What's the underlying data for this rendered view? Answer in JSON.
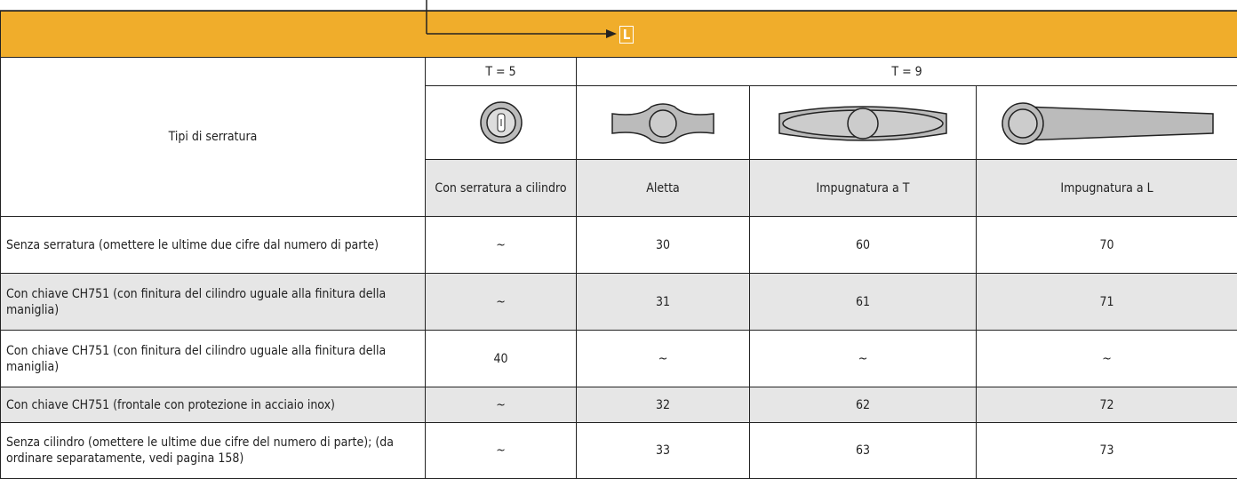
{
  "header": {
    "marker": "L"
  },
  "table": {
    "row_header": "Tipi di serratura",
    "groups": [
      "T = 5",
      "T = 9"
    ],
    "columns": [
      "Con serratura a cilindro",
      "Aletta",
      "Impugnatura a T",
      "Impugnatura a L"
    ],
    "rows": [
      [
        "Senza serratura (omettere le ultime due cifre dal numero di parte)",
        "~",
        "30",
        "60",
        "70"
      ],
      [
        "Con chiave CH751 (con finitura del cilindro uguale alla finitura della maniglia)",
        "~",
        "31",
        "61",
        "71"
      ],
      [
        "Con chiave CH751 (con finitura del cilindro uguale alla finitura della maniglia)",
        "40",
        "~",
        "~",
        "~"
      ],
      [
        "Con chiave CH751 (frontale con protezione in acciaio inox)",
        "~",
        "32",
        "62",
        "72"
      ],
      [
        "Senza cilindro (omettere le ultime due cifre del numero di parte); (da ordinare separatamente, vedi pagina 158)",
        "~",
        "33",
        "63",
        "73"
      ]
    ]
  }
}
